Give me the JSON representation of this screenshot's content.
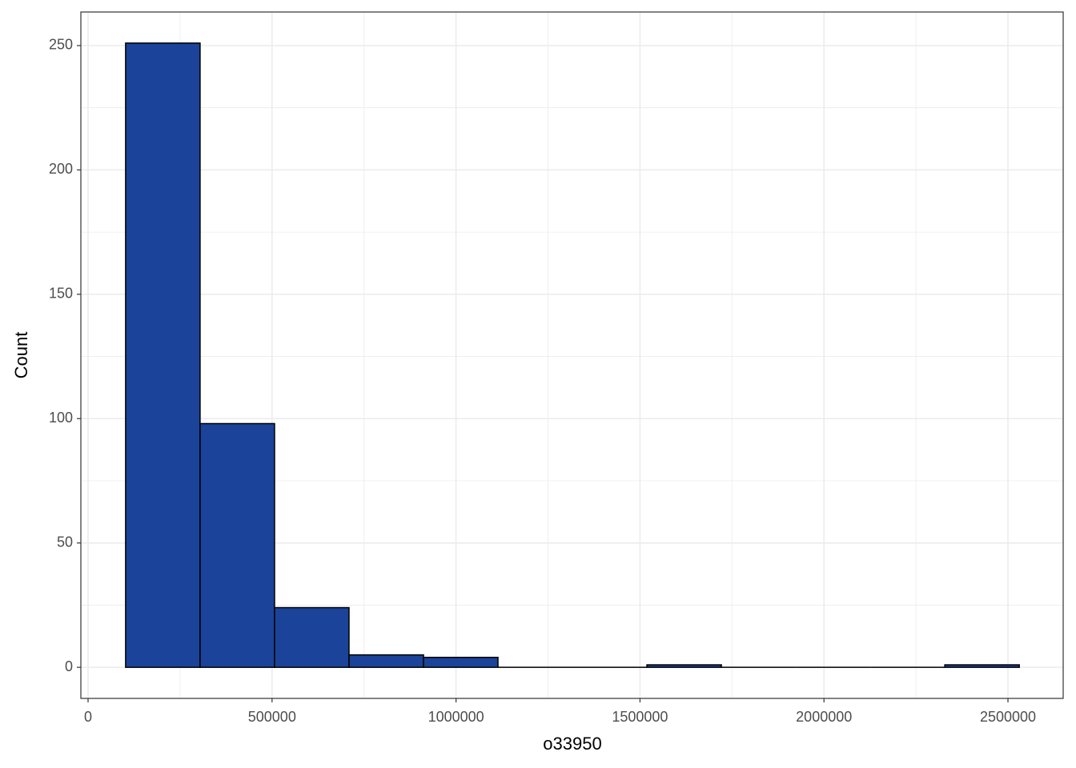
{
  "chart_data": {
    "type": "histogram",
    "x_label": "o33950",
    "y_label": "Count",
    "bins": [
      102000,
      304400,
      506800,
      709200,
      911600,
      1114000,
      1316400,
      1518800,
      1721200,
      1923600,
      2126000,
      2328400,
      2530800
    ],
    "values": [
      251,
      98,
      24,
      5,
      4,
      0,
      0,
      1,
      0,
      0,
      0,
      1
    ],
    "color": "#1a4399",
    "edge_color": "#000000",
    "xlim": [
      -19600,
      2650100
    ],
    "ylim": [
      -12.5,
      263.5
    ],
    "xticks": [
      0,
      500000,
      1000000,
      1500000,
      2000000,
      2500000
    ],
    "yticks": [
      0,
      50,
      100,
      150,
      200,
      250
    ],
    "grid": true,
    "minor_grid": true
  }
}
